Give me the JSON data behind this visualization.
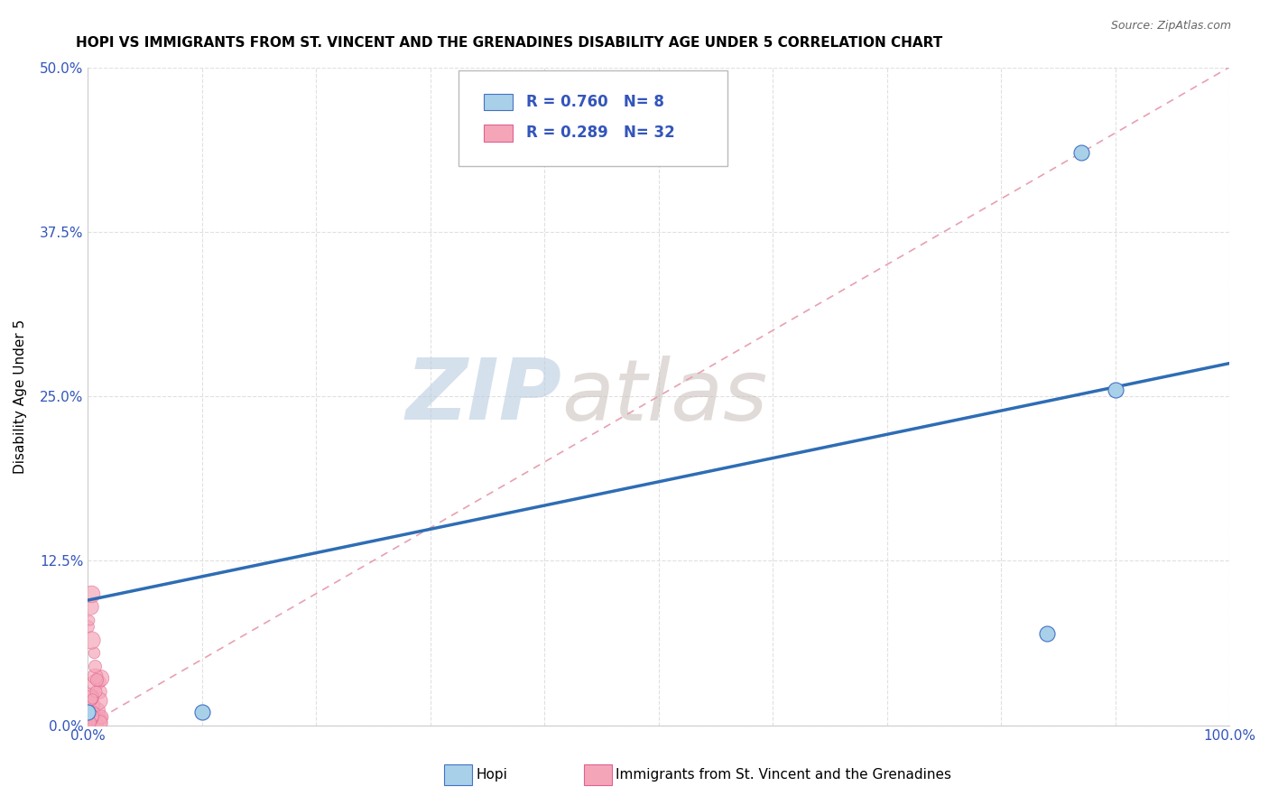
{
  "title": "HOPI VS IMMIGRANTS FROM ST. VINCENT AND THE GRENADINES DISABILITY AGE UNDER 5 CORRELATION CHART",
  "source": "Source: ZipAtlas.com",
  "xlim": [
    0.0,
    1.0
  ],
  "ylim": [
    0.0,
    0.5
  ],
  "yticks": [
    0.0,
    0.125,
    0.25,
    0.375,
    0.5
  ],
  "xticks": [
    0.0,
    0.1,
    0.2,
    0.3,
    0.4,
    0.5,
    0.6,
    0.7,
    0.8,
    0.9,
    1.0
  ],
  "hopi_color": "#A8D0E8",
  "hopi_edge_color": "#4472C4",
  "svg_color": "#F4A6B8",
  "svg_edge_color": "#E06090",
  "hopi_R": 0.76,
  "hopi_N": 8,
  "svg_R": 0.289,
  "svg_N": 32,
  "hopi_points_x": [
    0.0,
    0.1,
    0.84,
    0.87,
    0.9
  ],
  "hopi_points_y": [
    0.01,
    0.01,
    0.07,
    0.435,
    0.255
  ],
  "blue_line_x0": 0.0,
  "blue_line_y0": 0.095,
  "blue_line_x1": 1.0,
  "blue_line_y1": 0.275,
  "pink_line_x0": 0.0,
  "pink_line_y0": 0.0,
  "pink_line_x1": 1.0,
  "pink_line_y1": 0.5,
  "blue_line_color": "#2E6DB4",
  "pink_line_color": "#E8A0B0",
  "watermark_zip_color": "#C8D8E8",
  "watermark_atlas_color": "#D0C8C0",
  "title_fontsize": 11,
  "source_fontsize": 9,
  "legend_color": "#3355BB",
  "background_color": "#FFFFFF",
  "grid_color": "#DDDDDD"
}
